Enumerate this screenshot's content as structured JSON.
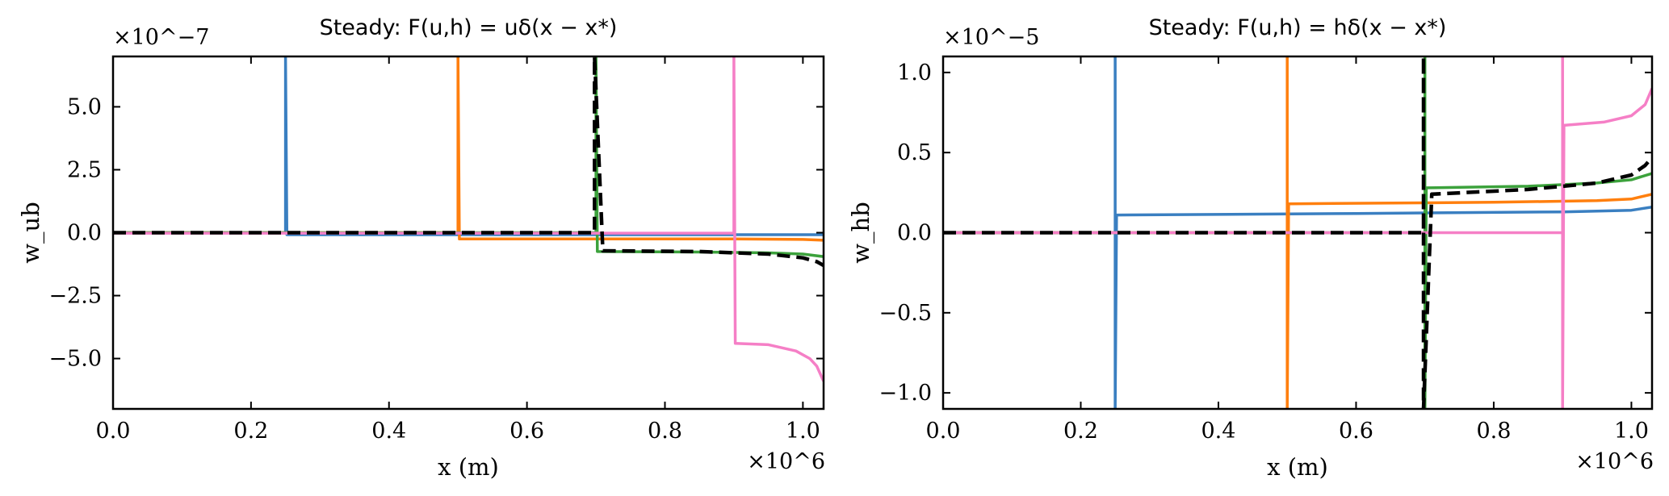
{
  "chart_data": [
    {
      "type": "line",
      "title": "Steady: F(u,h) = uδ(x − x*)",
      "xlabel": "x (m)",
      "ylabel": "w_ub",
      "x_offset_label": "×10^6",
      "y_offset_label": "×10^−7",
      "xlim": [
        0,
        1.03
      ],
      "ylim": [
        -7,
        7
      ],
      "xticks": [
        0.0,
        0.2,
        0.4,
        0.6,
        0.8,
        1.0
      ],
      "xtick_labels": [
        "0.0",
        "0.2",
        "0.4",
        "0.6",
        "0.8",
        "1.0"
      ],
      "yticks": [
        5.0,
        2.5,
        0.0,
        -2.5,
        -5.0
      ],
      "ytick_labels": [
        "5.0",
        "2.5",
        "0.0",
        "−2.5",
        "−5.0"
      ],
      "grid": false,
      "series": [
        {
          "color": "#3a7fc1",
          "width": 3.5,
          "dash": "",
          "x": [
            0,
            0.25,
            0.25,
            0.25,
            0.252,
            1.03
          ],
          "y": [
            0,
            0,
            7,
            7,
            -0.08,
            -0.08
          ]
        },
        {
          "color": "#ff7f0e",
          "width": 3.5,
          "dash": "",
          "x": [
            0,
            0.5,
            0.5,
            0.5,
            0.502,
            0.9,
            1.0,
            1.03
          ],
          "y": [
            0,
            0,
            7,
            7,
            -0.25,
            -0.25,
            -0.27,
            -0.3
          ]
        },
        {
          "color": "#3ca23c",
          "width": 3.5,
          "dash": "",
          "x": [
            0,
            0.7,
            0.7,
            0.7,
            0.702,
            0.85,
            0.95,
            1.0,
            1.03
          ],
          "y": [
            0,
            0,
            7,
            7,
            -0.75,
            -0.77,
            -0.8,
            -0.85,
            -0.95
          ]
        },
        {
          "color": "#f57fc6",
          "width": 3.5,
          "dash": "",
          "x": [
            0,
            0.9,
            0.9,
            0.9,
            0.902,
            0.95,
            0.99,
            1.01,
            1.02,
            1.03
          ],
          "y": [
            -0.02,
            -0.02,
            7,
            7,
            -4.4,
            -4.45,
            -4.7,
            -5.0,
            -5.3,
            -5.9
          ]
        },
        {
          "color": "#000000",
          "width": 4.5,
          "dash": "16,8",
          "x": [
            0,
            0.698,
            0.698,
            0.698,
            0.71,
            0.85,
            0.95,
            1.0,
            1.02,
            1.03
          ],
          "y": [
            0.0,
            0.0,
            7,
            7,
            -0.72,
            -0.75,
            -0.85,
            -1.0,
            -1.15,
            -1.3
          ]
        }
      ]
    },
    {
      "type": "line",
      "title": "Steady: F(u,h) = hδ(x − x*)",
      "xlabel": "x (m)",
      "ylabel": "w_hb",
      "x_offset_label": "×10^6",
      "y_offset_label": "×10^−5",
      "xlim": [
        0,
        1.03
      ],
      "ylim": [
        -1.1,
        1.1
      ],
      "xticks": [
        0.0,
        0.2,
        0.4,
        0.6,
        0.8,
        1.0
      ],
      "xtick_labels": [
        "0.0",
        "0.2",
        "0.4",
        "0.6",
        "0.8",
        "1.0"
      ],
      "yticks": [
        1.0,
        0.5,
        0.0,
        -0.5,
        -1.0
      ],
      "ytick_labels": [
        "1.0",
        "0.5",
        "0.0",
        "−0.5",
        "−1.0"
      ],
      "grid": false,
      "series": [
        {
          "color": "#3a7fc1",
          "width": 3.5,
          "dash": "",
          "x": [
            0,
            0.25,
            0.25,
            0.25,
            0.252,
            0.6,
            0.9,
            1.0,
            1.03
          ],
          "y": [
            0,
            0,
            1.1,
            -1.1,
            0.11,
            0.12,
            0.13,
            0.14,
            0.16
          ]
        },
        {
          "color": "#ff7f0e",
          "width": 3.5,
          "dash": "",
          "x": [
            0,
            0.5,
            0.5,
            0.5,
            0.502,
            0.8,
            0.95,
            1.0,
            1.03
          ],
          "y": [
            0,
            0,
            1.1,
            -1.1,
            0.18,
            0.19,
            0.2,
            0.21,
            0.24
          ]
        },
        {
          "color": "#3ca23c",
          "width": 3.5,
          "dash": "",
          "x": [
            0,
            0.7,
            0.7,
            0.7,
            0.702,
            0.85,
            0.95,
            1.0,
            1.03
          ],
          "y": [
            0,
            0,
            1.1,
            -1.1,
            0.28,
            0.29,
            0.31,
            0.33,
            0.37
          ]
        },
        {
          "color": "#f57fc6",
          "width": 3.5,
          "dash": "",
          "x": [
            0,
            0.9,
            0.9,
            0.9,
            0.902,
            0.96,
            1.0,
            1.02,
            1.03
          ],
          "y": [
            0,
            0,
            1.1,
            -1.1,
            0.67,
            0.69,
            0.73,
            0.8,
            0.9
          ]
        },
        {
          "color": "#000000",
          "width": 4.5,
          "dash": "16,8",
          "x": [
            0,
            0.698,
            0.698,
            0.698,
            0.71,
            0.85,
            0.95,
            1.0,
            1.02,
            1.03
          ],
          "y": [
            0.0,
            0.0,
            1.1,
            -1.1,
            0.24,
            0.27,
            0.31,
            0.36,
            0.42,
            0.47
          ]
        }
      ]
    }
  ]
}
